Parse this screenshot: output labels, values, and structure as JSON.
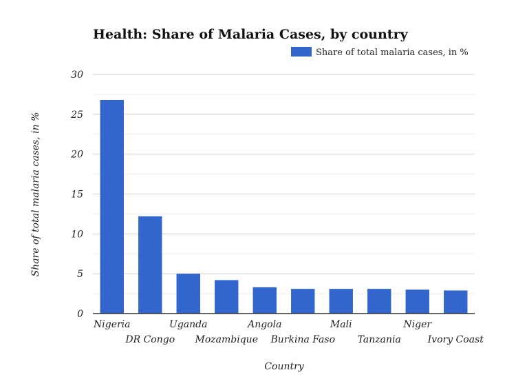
{
  "chart_data": {
    "type": "bar",
    "title": "Health: Share of Malaria Cases, by country",
    "xlabel": "Country",
    "ylabel": "Share of total malaria cases, in %",
    "categories": [
      "Nigeria",
      "DR Congo",
      "Uganda",
      "Mozambique",
      "Angola",
      "Burkina Faso",
      "Mali",
      "Tanzania",
      "Niger",
      "Ivory Coast"
    ],
    "series": [
      {
        "name": "Share of total malaria cases, in %",
        "values": [
          26.8,
          12.2,
          5.0,
          4.2,
          3.3,
          3.1,
          3.1,
          3.1,
          3.0,
          2.9
        ],
        "color": "#3366cc"
      }
    ],
    "ylim": [
      0,
      30
    ],
    "yticks": [
      0,
      5,
      10,
      15,
      20,
      25,
      30
    ],
    "grid": true,
    "legend": "top-right"
  }
}
